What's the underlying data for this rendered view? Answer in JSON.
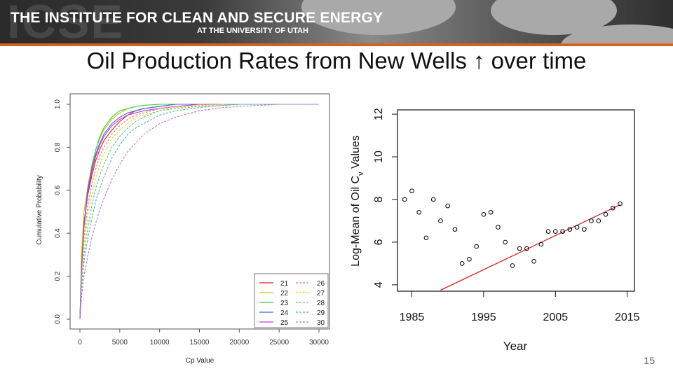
{
  "header": {
    "institute": "THE INSTITUTE FOR CLEAN AND SECURE ENERGY",
    "university": "AT THE UNIVERSITY OF UTAH",
    "watermark": "ICSE",
    "accent_color": "#d9621a"
  },
  "slide": {
    "title": "Oil Production Rates from New Wells ↑ over time",
    "number": "15"
  },
  "chart_data": [
    {
      "type": "line",
      "title": "",
      "xlabel": "Cp Value",
      "ylabel": "Cumulative Probability",
      "xlim": [
        0,
        30000
      ],
      "ylim": [
        0,
        1
      ],
      "xticks": [
        0,
        5000,
        10000,
        15000,
        20000,
        25000,
        30000
      ],
      "yticks": [
        0.0,
        0.2,
        0.4,
        0.6,
        0.8,
        1.0
      ],
      "ytick_labels": [
        "0.0",
        "0.2",
        "0.4",
        "0.6",
        "0.8",
        "1.0"
      ],
      "legend_position": "bottom-right",
      "x": [
        0,
        200,
        500,
        1000,
        1500,
        2000,
        2500,
        3000,
        4000,
        5000,
        6000,
        7000,
        8000,
        10000,
        12000,
        15000,
        18000,
        20000,
        25000,
        30000
      ],
      "series": [
        {
          "name": "21",
          "color": "#e41a1c",
          "dashed": false,
          "values": [
            0,
            0.25,
            0.45,
            0.58,
            0.67,
            0.74,
            0.79,
            0.83,
            0.88,
            0.92,
            0.95,
            0.97,
            0.98,
            0.99,
            1.0,
            1.0,
            1.0,
            1.0,
            1.0,
            1.0
          ]
        },
        {
          "name": "22",
          "color": "#c8c800",
          "dashed": false,
          "values": [
            0,
            0.3,
            0.5,
            0.62,
            0.72,
            0.79,
            0.84,
            0.88,
            0.93,
            0.96,
            0.98,
            0.99,
            0.995,
            1.0,
            1.0,
            1.0,
            1.0,
            1.0,
            1.0,
            1.0
          ]
        },
        {
          "name": "23",
          "color": "#2fce4a",
          "dashed": false,
          "values": [
            0,
            0.22,
            0.42,
            0.6,
            0.71,
            0.79,
            0.85,
            0.89,
            0.94,
            0.97,
            0.98,
            0.99,
            0.995,
            1.0,
            1.0,
            1.0,
            1.0,
            1.0,
            1.0,
            1.0
          ]
        },
        {
          "name": "24",
          "color": "#3b6fd6",
          "dashed": false,
          "values": [
            0,
            0.24,
            0.44,
            0.61,
            0.7,
            0.77,
            0.82,
            0.86,
            0.91,
            0.94,
            0.96,
            0.97,
            0.98,
            0.99,
            1.0,
            1.0,
            1.0,
            1.0,
            1.0,
            1.0
          ]
        },
        {
          "name": "25",
          "color": "#c03ad6",
          "dashed": false,
          "values": [
            0,
            0.23,
            0.43,
            0.59,
            0.69,
            0.76,
            0.81,
            0.85,
            0.9,
            0.93,
            0.95,
            0.96,
            0.97,
            0.98,
            0.99,
            1.0,
            1.0,
            1.0,
            1.0,
            1.0
          ]
        },
        {
          "name": "26",
          "color": "#ee6a8a",
          "dashed": true,
          "values": [
            0,
            0.2,
            0.38,
            0.53,
            0.63,
            0.7,
            0.76,
            0.8,
            0.86,
            0.9,
            0.93,
            0.95,
            0.96,
            0.98,
            0.99,
            0.995,
            1.0,
            1.0,
            1.0,
            1.0
          ]
        },
        {
          "name": "27",
          "color": "#dcd800",
          "dashed": true,
          "values": [
            0,
            0.18,
            0.34,
            0.48,
            0.58,
            0.66,
            0.72,
            0.77,
            0.84,
            0.88,
            0.91,
            0.94,
            0.95,
            0.97,
            0.985,
            0.995,
            1.0,
            1.0,
            1.0,
            1.0
          ]
        },
        {
          "name": "28",
          "color": "#55c97a",
          "dashed": true,
          "values": [
            0,
            0.16,
            0.3,
            0.43,
            0.53,
            0.61,
            0.67,
            0.72,
            0.8,
            0.85,
            0.89,
            0.92,
            0.94,
            0.97,
            0.98,
            0.99,
            0.995,
            1.0,
            1.0,
            1.0
          ]
        },
        {
          "name": "29",
          "color": "#55aabb",
          "dashed": true,
          "values": [
            0,
            0.14,
            0.26,
            0.38,
            0.47,
            0.55,
            0.61,
            0.66,
            0.75,
            0.81,
            0.86,
            0.89,
            0.91,
            0.95,
            0.97,
            0.985,
            0.995,
            1.0,
            1.0,
            1.0
          ]
        },
        {
          "name": "30",
          "color": "#c56bd6",
          "dashed": true,
          "values": [
            0,
            0.1,
            0.2,
            0.3,
            0.38,
            0.45,
            0.51,
            0.56,
            0.65,
            0.72,
            0.78,
            0.82,
            0.86,
            0.91,
            0.94,
            0.97,
            0.985,
            0.99,
            1.0,
            1.0
          ]
        }
      ]
    },
    {
      "type": "scatter",
      "title": "",
      "xlabel": "Year",
      "ylabel_main": "Log-Mean of Oil C",
      "ylabel_sub": "v",
      "ylabel_tail": " Values",
      "xlim": [
        1983,
        2016
      ],
      "ylim": [
        3.7,
        12.2
      ],
      "xticks": [
        1985,
        1995,
        2005,
        2015
      ],
      "yticks": [
        4,
        6,
        8,
        10,
        12
      ],
      "point_color": "#000000",
      "trend_color": "#d42020",
      "x": [
        1984,
        1985,
        1986,
        1987,
        1988,
        1989,
        1990,
        1991,
        1992,
        1993,
        1994,
        1995,
        1996,
        1997,
        1998,
        1999,
        2000,
        2001,
        2002,
        2003,
        2004,
        2005,
        2006,
        2007,
        2008,
        2009,
        2010,
        2011,
        2012,
        2013,
        2014
      ],
      "y": [
        8.0,
        8.4,
        7.4,
        6.2,
        8.0,
        7.0,
        7.7,
        6.6,
        5.0,
        5.2,
        5.8,
        7.3,
        7.4,
        6.7,
        6.0,
        4.9,
        5.7,
        5.7,
        5.1,
        5.9,
        6.5,
        6.5,
        6.5,
        6.6,
        6.7,
        6.6,
        7.0,
        7.0,
        7.3,
        7.6,
        7.8
      ],
      "trend": {
        "x": [
          1989,
          2014
        ],
        "y": [
          3.75,
          7.75
        ]
      }
    }
  ]
}
